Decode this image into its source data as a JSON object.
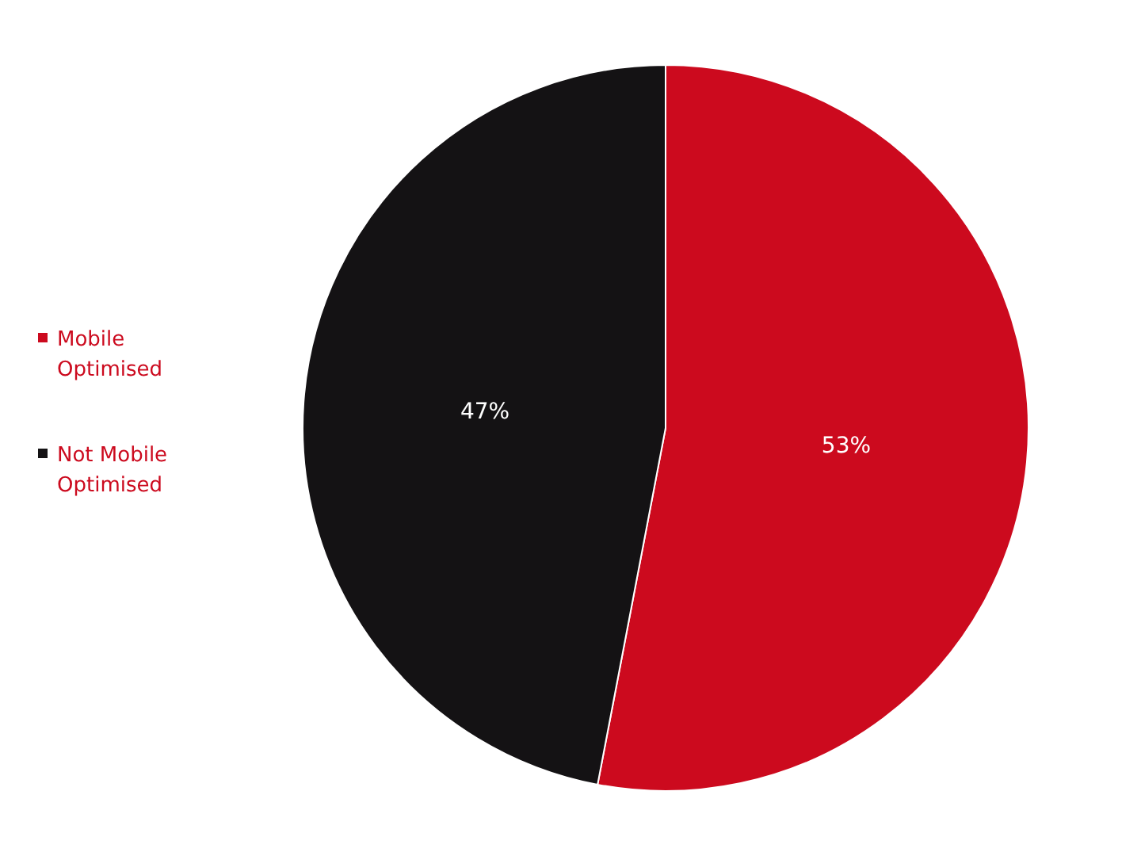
{
  "chart_data": {
    "type": "pie",
    "categories": [
      "Mobile Optimised",
      "Not Mobile Optimised"
    ],
    "values": [
      53,
      47
    ],
    "colors": [
      "#cc0a1e",
      "#141214"
    ],
    "value_labels": [
      "53%",
      "47%"
    ],
    "legend": "left"
  }
}
